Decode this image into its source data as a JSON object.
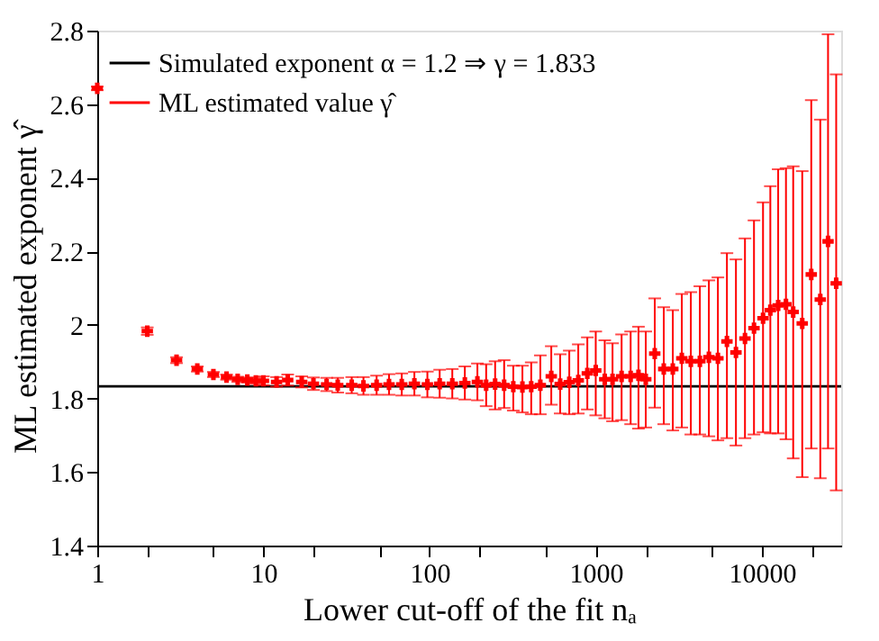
{
  "chart_data": {
    "type": "scatter",
    "xlabel": "Lower cut-off of the fit nₐ",
    "ylabel": "ML estimated exponent γ̂",
    "log": "x",
    "xlim": [
      1,
      30000
    ],
    "ylim": [
      1.4,
      2.8
    ],
    "xticks": [
      1,
      {
        "value": 2,
        "label": null
      },
      {
        "value": 5,
        "label": null
      },
      10,
      {
        "value": 20,
        "label": null
      },
      {
        "value": 50,
        "label": null
      },
      100,
      {
        "value": 200,
        "label": null
      },
      {
        "value": 500,
        "label": null
      },
      1000,
      {
        "value": 2000,
        "label": null
      },
      {
        "value": 5000,
        "label": null
      },
      10000,
      {
        "value": 20000,
        "label": null
      }
    ],
    "yticks": [
      1.4,
      1.6,
      1.8,
      2,
      2.2,
      2.4,
      2.6,
      2.8
    ],
    "grid": false,
    "legend": "top left",
    "marker": "cross",
    "series": [
      {
        "name": "Simulated exponent α = 1.2 ⇒ γ = 1.833",
        "type": "line",
        "color": "#000000",
        "line_style": "solid",
        "marker": "none",
        "x": [
          1,
          30000
        ],
        "values": [
          1.833,
          1.833
        ]
      },
      {
        "name": "ML estimated value γ̂",
        "color": "#ff0000",
        "x": [
          1,
          2,
          3,
          4,
          5,
          6,
          7,
          8,
          9,
          10,
          12,
          14,
          17,
          20,
          24,
          28,
          34,
          40,
          48,
          57,
          68,
          81,
          97,
          115,
          137,
          163,
          194,
          219,
          248,
          281,
          319,
          362,
          409,
          464,
          540,
          611,
          693,
          785,
          890,
          1000,
          1133,
          1262,
          1431,
          1622,
          1808,
          2000,
          2265,
          2567,
          2909,
          3296,
          3735,
          4233,
          4797,
          5436,
          6160,
          6980,
          7910,
          8963,
          10160,
          11240,
          12530,
          13960,
          15430,
          17490,
          19820,
          22460,
          25010,
          28000
        ],
        "values": [
          2.643,
          1.983,
          1.904,
          1.88,
          1.865,
          1.858,
          1.852,
          1.85,
          1.848,
          1.848,
          1.845,
          1.85,
          1.845,
          1.84,
          1.838,
          1.836,
          1.836,
          1.834,
          1.836,
          1.838,
          1.838,
          1.84,
          1.838,
          1.84,
          1.84,
          1.842,
          1.845,
          1.836,
          1.839,
          1.836,
          1.832,
          1.831,
          1.832,
          1.836,
          1.86,
          1.839,
          1.844,
          1.849,
          1.868,
          1.876,
          1.852,
          1.852,
          1.86,
          1.86,
          1.863,
          1.852,
          1.922,
          1.88,
          1.88,
          1.909,
          1.901,
          1.901,
          1.912,
          1.909,
          1.955,
          1.925,
          1.963,
          1.991,
          2.018,
          2.04,
          2.053,
          2.056,
          2.035,
          2.004,
          2.137,
          2.069,
          2.227,
          2.113
        ],
        "errors": [
          0.005,
          0.01,
          0.008,
          0.007,
          0.007,
          0.007,
          0.007,
          0.007,
          0.008,
          0.012,
          0.013,
          0.015,
          0.015,
          0.017,
          0.018,
          0.02,
          0.022,
          0.024,
          0.026,
          0.028,
          0.03,
          0.032,
          0.035,
          0.038,
          0.04,
          0.045,
          0.05,
          [
            1.779,
            1.893
          ],
          [
            1.77,
            1.901
          ],
          [
            1.774,
            1.904
          ],
          [
            1.767,
            1.889
          ],
          [
            1.762,
            1.889
          ],
          [
            1.757,
            1.898
          ],
          [
            1.757,
            1.917
          ],
          [
            1.783,
            1.942
          ],
          [
            1.759,
            1.92
          ],
          [
            1.757,
            1.93
          ],
          [
            1.759,
            1.947
          ],
          [
            1.77,
            1.966
          ],
          [
            1.754,
            1.982
          ],
          [
            1.746,
            1.958
          ],
          [
            1.738,
            1.95
          ],
          [
            1.741,
            1.974
          ],
          [
            1.73,
            1.982
          ],
          [
            1.718,
            1.995
          ],
          [
            1.721,
            1.982
          ],
          [
            1.775,
            2.072
          ],
          [
            1.73,
            2.048
          ],
          [
            1.713,
            2.04
          ],
          [
            1.721,
            2.084
          ],
          [
            1.702,
            2.089
          ],
          [
            1.702,
            2.105
          ],
          [
            1.697,
            2.121
          ],
          [
            1.686,
            2.129
          ],
          [
            1.692,
            2.195
          ],
          [
            1.672,
            2.178
          ],
          [
            1.692,
            2.235
          ],
          [
            1.702,
            2.284
          ],
          [
            1.708,
            2.333
          ],
          [
            1.705,
            2.377
          ],
          [
            1.705,
            2.423
          ],
          [
            1.689,
            2.426
          ],
          [
            1.637,
            2.431
          ],
          [
            1.586,
            2.418
          ],
          [
            1.664,
            2.611
          ],
          [
            1.583,
            2.558
          ],
          [
            1.664,
            2.79
          ],
          [
            1.55,
            2.681
          ]
        ]
      }
    ]
  }
}
